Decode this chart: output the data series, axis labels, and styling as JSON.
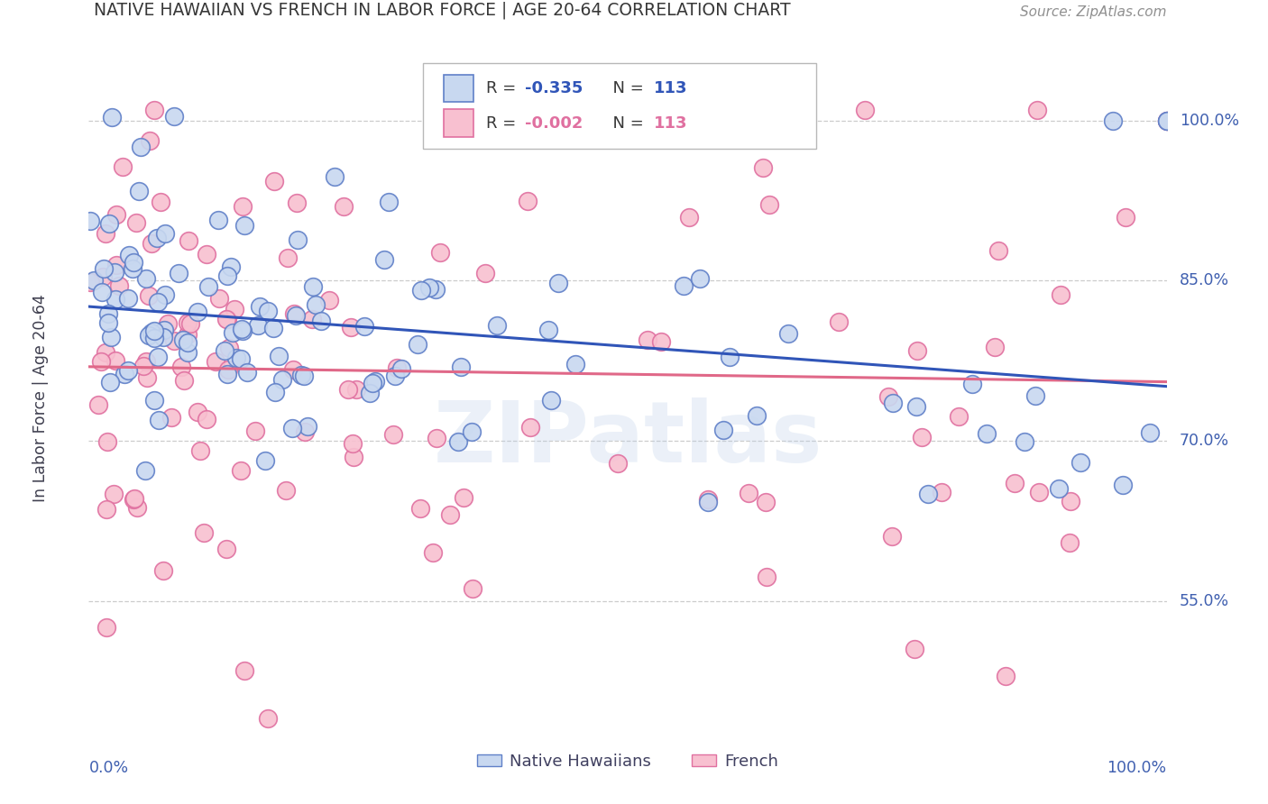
{
  "title": "NATIVE HAWAIIAN VS FRENCH IN LABOR FORCE | AGE 20-64 CORRELATION CHART",
  "source": "Source: ZipAtlas.com",
  "ylabel": "In Labor Force | Age 20-64",
  "xlim": [
    0.0,
    1.0
  ],
  "ylim": [
    0.42,
    1.06
  ],
  "ytick_labels": [
    "100.0%",
    "85.0%",
    "70.0%",
    "55.0%"
  ],
  "ytick_values": [
    1.0,
    0.85,
    0.7,
    0.55
  ],
  "blue_fill": "#c8d8f0",
  "blue_edge": "#6080c8",
  "pink_fill": "#f8c0d0",
  "pink_edge": "#e070a0",
  "blue_line_color": "#3055b8",
  "pink_line_color": "#e06888",
  "watermark": "ZIPatlas",
  "background_color": "#ffffff",
  "grid_color": "#cccccc",
  "axis_label_color": "#4060b0",
  "title_color": "#383838",
  "source_color": "#909090",
  "legend_R_blue": "-0.335",
  "legend_N_blue": "113",
  "legend_R_pink": "-0.002",
  "legend_N_pink": "113"
}
